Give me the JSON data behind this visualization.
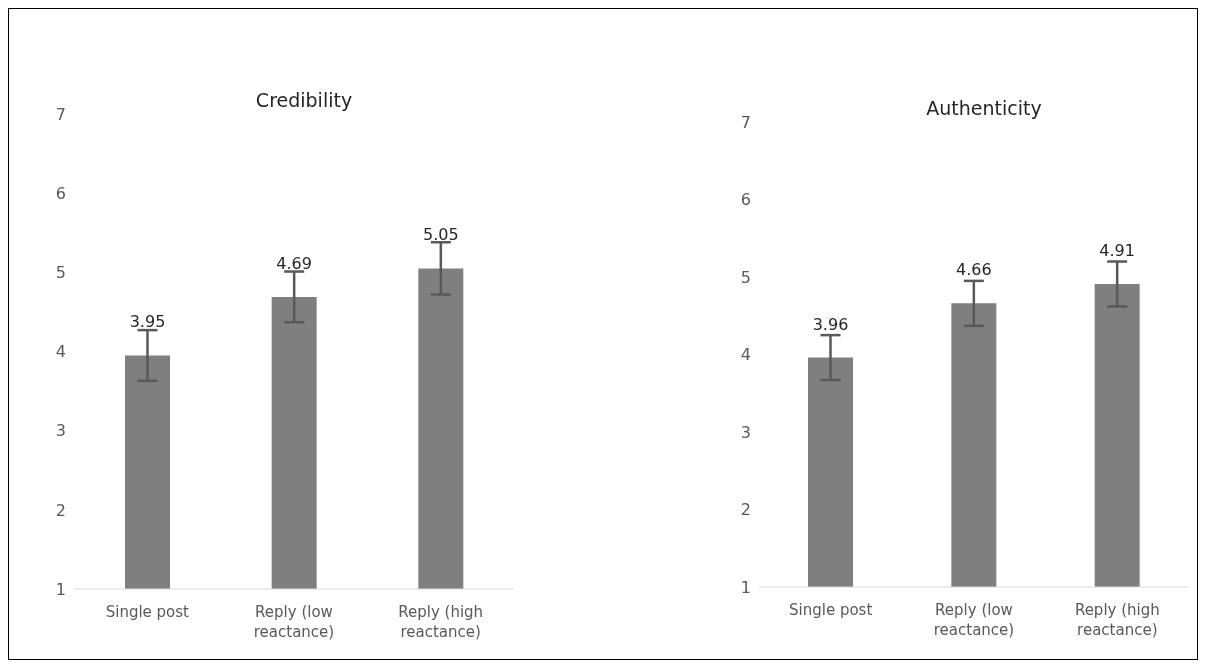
{
  "chart_data": [
    {
      "type": "bar",
      "title": "Credibility",
      "categories": [
        "Single post",
        "Reply (low reactance)",
        "Reply (high reactance)"
      ],
      "values": [
        3.95,
        4.69,
        5.05
      ],
      "errors": [
        0.32,
        0.32,
        0.33
      ],
      "color": "#7f7f7f",
      "ylim": [
        1,
        7
      ],
      "yticks": [
        1,
        2,
        3,
        4,
        5,
        6,
        7
      ],
      "data_labels": true,
      "grid": false,
      "legend": false
    },
    {
      "type": "bar",
      "title": "Authenticity",
      "categories": [
        "Single post",
        "Reply (low reactance)",
        "Reply (high reactance)"
      ],
      "values": [
        3.96,
        4.66,
        4.91
      ],
      "errors": [
        0.29,
        0.29,
        0.29
      ],
      "color": "#7f7f7f",
      "ylim": [
        1,
        7
      ],
      "yticks": [
        1,
        2,
        3,
        4,
        5,
        6,
        7
      ],
      "data_labels": true,
      "grid": false,
      "legend": false
    }
  ]
}
